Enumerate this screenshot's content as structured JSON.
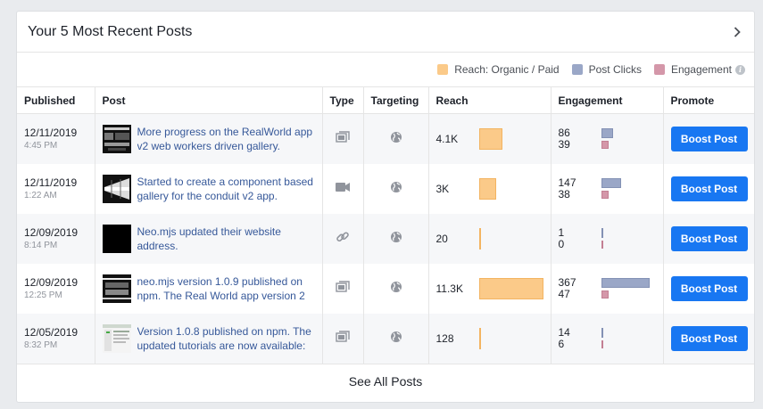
{
  "card": {
    "title": "Your 5 Most Recent Posts",
    "see_all": "See All Posts"
  },
  "legend": [
    {
      "label": "Reach: Organic / Paid",
      "color": "#fbca89"
    },
    {
      "label": "Post Clicks",
      "color": "#9aa7c7"
    },
    {
      "label": "Engagement",
      "color": "#d497a9"
    }
  ],
  "columns": [
    "Published",
    "Post",
    "Type",
    "Targeting",
    "Reach",
    "Engagement",
    "Promote"
  ],
  "posts": [
    {
      "date": "12/11/2019",
      "time": "4:45 PM",
      "text": "More progress on the RealWorld app v2 web workers driven gallery.",
      "type_icon": "album-icon",
      "targeting_icon": "globe-icon",
      "reach": "4.1K",
      "reach_value": 4100,
      "clicks": "86",
      "clicks_value": 86,
      "engagement": "39",
      "engagement_value": 39,
      "boost": "Boost Post"
    },
    {
      "date": "12/11/2019",
      "time": "1:22 AM",
      "text": "Started to create a component based gallery for the conduit v2 app.",
      "type_icon": "video-icon",
      "targeting_icon": "globe-icon",
      "reach": "3K",
      "reach_value": 3000,
      "clicks": "147",
      "clicks_value": 147,
      "engagement": "38",
      "engagement_value": 38,
      "boost": "Boost Post"
    },
    {
      "date": "12/09/2019",
      "time": "8:14 PM",
      "text": "Neo.mjs updated their website address.",
      "type_icon": "link-icon",
      "targeting_icon": "globe-icon",
      "reach": "20",
      "reach_value": 20,
      "clicks": "1",
      "clicks_value": 1,
      "engagement": "0",
      "engagement_value": 0,
      "boost": "Boost Post"
    },
    {
      "date": "12/09/2019",
      "time": "12:25 PM",
      "text": "neo.mjs version 1.0.9 published on npm. The Real World app version 2",
      "type_icon": "album-icon",
      "targeting_icon": "globe-icon",
      "reach": "11.3K",
      "reach_value": 11300,
      "clicks": "367",
      "clicks_value": 367,
      "engagement": "47",
      "engagement_value": 47,
      "boost": "Boost Post"
    },
    {
      "date": "12/05/2019",
      "time": "8:32 PM",
      "text": "Version 1.0.8 published on npm. The updated tutorials are now available:",
      "type_icon": "album-icon",
      "targeting_icon": "globe-icon",
      "reach": "128",
      "reach_value": 128,
      "clicks": "14",
      "clicks_value": 14,
      "engagement": "6",
      "engagement_value": 6,
      "boost": "Boost Post"
    }
  ]
}
